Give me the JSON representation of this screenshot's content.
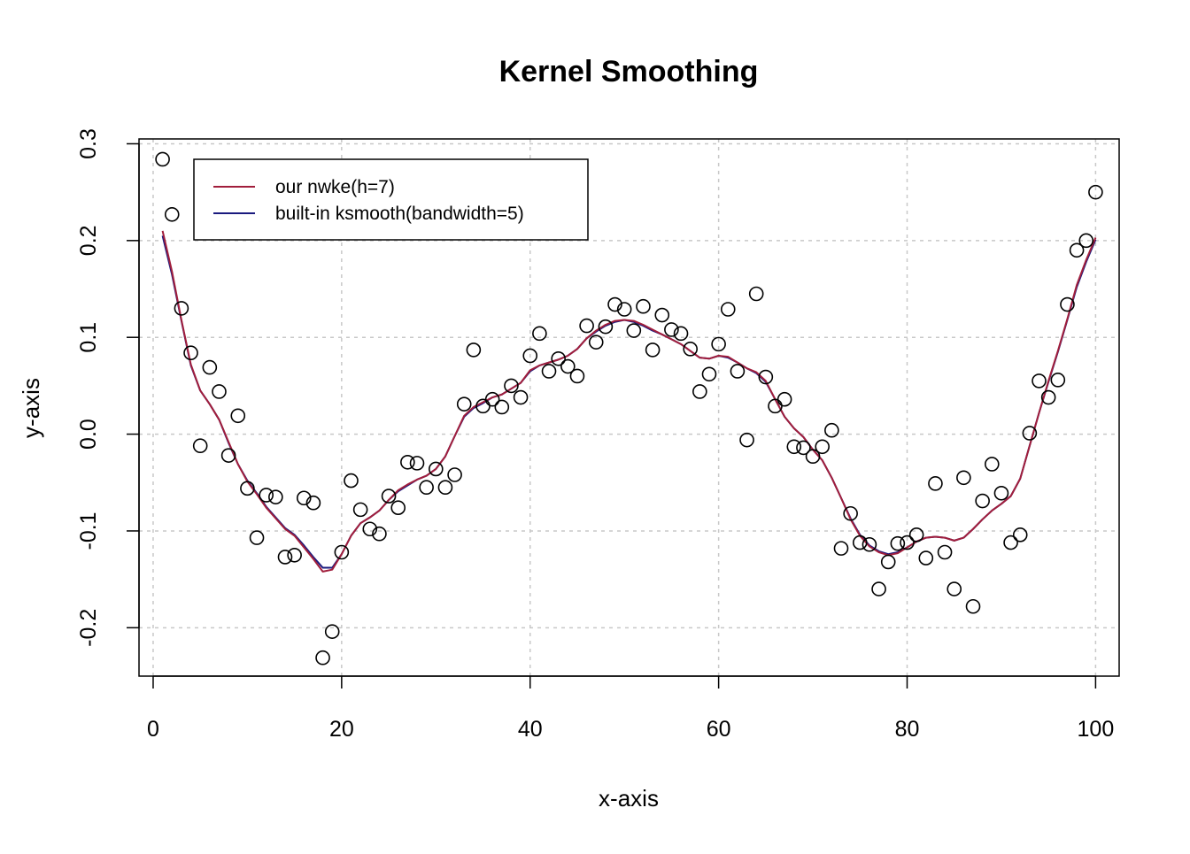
{
  "chart_data": {
    "type": "scatter",
    "title": "Kernel Smoothing",
    "xlabel": "x-axis",
    "ylabel": "y-axis",
    "xlim": [
      -1.5,
      102.5
    ],
    "ylim": [
      -0.25,
      0.305
    ],
    "x_ticks": [
      "0",
      "20",
      "40",
      "60",
      "80",
      "100"
    ],
    "x_tick_values": [
      0,
      20,
      40,
      60,
      80,
      100
    ],
    "y_ticks": [
      "-0.2",
      "-0.1",
      "0.0",
      "0.1",
      "0.2",
      "0.3"
    ],
    "y_tick_values": [
      -0.2,
      -0.1,
      0.0,
      0.1,
      0.2,
      0.3
    ],
    "grid": true,
    "legend_position": "top-left",
    "x": [
      1,
      2,
      3,
      4,
      5,
      6,
      7,
      8,
      9,
      10,
      11,
      12,
      13,
      14,
      15,
      16,
      17,
      18,
      19,
      20,
      21,
      22,
      23,
      24,
      25,
      26,
      27,
      28,
      29,
      30,
      31,
      32,
      33,
      34,
      35,
      36,
      37,
      38,
      39,
      40,
      41,
      42,
      43,
      44,
      45,
      46,
      47,
      48,
      49,
      50,
      51,
      52,
      53,
      54,
      55,
      56,
      57,
      58,
      59,
      60,
      61,
      62,
      63,
      64,
      65,
      66,
      67,
      68,
      69,
      70,
      71,
      72,
      73,
      74,
      75,
      76,
      77,
      78,
      79,
      80,
      81,
      82,
      83,
      84,
      85,
      86,
      87,
      88,
      89,
      90,
      91,
      92,
      93,
      94,
      95,
      96,
      97,
      98,
      99,
      100
    ],
    "points": [
      0.284,
      0.227,
      0.13,
      0.084,
      -0.012,
      0.069,
      0.044,
      -0.022,
      0.019,
      -0.056,
      -0.107,
      -0.063,
      -0.065,
      -0.127,
      -0.125,
      -0.066,
      -0.071,
      -0.231,
      -0.204,
      -0.122,
      -0.048,
      -0.078,
      -0.098,
      -0.103,
      -0.064,
      -0.076,
      -0.029,
      -0.03,
      -0.055,
      -0.036,
      -0.055,
      -0.042,
      0.031,
      0.087,
      0.029,
      0.036,
      0.028,
      0.05,
      0.038,
      0.081,
      0.104,
      0.065,
      0.078,
      0.07,
      0.06,
      0.112,
      0.095,
      0.111,
      0.134,
      0.129,
      0.107,
      0.132,
      0.087,
      0.123,
      0.108,
      0.104,
      0.088,
      0.044,
      0.062,
      0.093,
      0.129,
      0.065,
      -0.006,
      0.145,
      0.059,
      0.029,
      0.036,
      -0.013,
      -0.014,
      -0.023,
      -0.013,
      0.004,
      -0.118,
      -0.082,
      -0.112,
      -0.114,
      -0.16,
      -0.132,
      -0.113,
      -0.112,
      -0.104,
      -0.128,
      -0.051,
      -0.122,
      -0.16,
      -0.045,
      -0.178,
      -0.069,
      -0.031,
      -0.061,
      -0.112,
      -0.104,
      0.001,
      0.055,
      0.038,
      0.056,
      0.134,
      0.19,
      0.2,
      0.25
    ],
    "series": [
      {
        "name": "built-in ksmooth(bandwidth=5)",
        "color": "#1a1a7e",
        "values": [
          0.205,
          0.165,
          0.117,
          0.071,
          0.045,
          0.031,
          0.015,
          -0.009,
          -0.031,
          -0.048,
          -0.061,
          -0.075,
          -0.086,
          -0.097,
          -0.104,
          -0.115,
          -0.127,
          -0.138,
          -0.138,
          -0.124,
          -0.105,
          -0.092,
          -0.086,
          -0.079,
          -0.068,
          -0.059,
          -0.053,
          -0.047,
          -0.043,
          -0.036,
          -0.023,
          -0.002,
          0.018,
          0.027,
          0.032,
          0.038,
          0.041,
          0.047,
          0.053,
          0.065,
          0.071,
          0.074,
          0.077,
          0.081,
          0.088,
          0.099,
          0.106,
          0.112,
          0.116,
          0.118,
          0.116,
          0.112,
          0.107,
          0.103,
          0.098,
          0.093,
          0.086,
          0.079,
          0.078,
          0.081,
          0.079,
          0.074,
          0.068,
          0.063,
          0.054,
          0.036,
          0.018,
          0.006,
          -0.003,
          -0.016,
          -0.027,
          -0.045,
          -0.066,
          -0.087,
          -0.104,
          -0.115,
          -0.121,
          -0.124,
          -0.122,
          -0.117,
          -0.111,
          -0.107,
          -0.106,
          -0.107,
          -0.11,
          -0.107,
          -0.098,
          -0.088,
          -0.079,
          -0.072,
          -0.064,
          -0.046,
          -0.012,
          0.022,
          0.054,
          0.085,
          0.118,
          0.152,
          0.178,
          0.201
        ]
      },
      {
        "name": "our nwke(h=7)",
        "color": "#a11e3c",
        "values": [
          0.21,
          0.168,
          0.118,
          0.072,
          0.045,
          0.031,
          0.015,
          -0.008,
          -0.031,
          -0.049,
          -0.062,
          -0.076,
          -0.087,
          -0.098,
          -0.105,
          -0.117,
          -0.129,
          -0.142,
          -0.14,
          -0.124,
          -0.105,
          -0.092,
          -0.086,
          -0.079,
          -0.068,
          -0.058,
          -0.052,
          -0.047,
          -0.043,
          -0.036,
          -0.023,
          -0.002,
          0.019,
          0.028,
          0.033,
          0.038,
          0.041,
          0.047,
          0.053,
          0.066,
          0.071,
          0.074,
          0.077,
          0.081,
          0.088,
          0.099,
          0.107,
          0.113,
          0.117,
          0.118,
          0.117,
          0.113,
          0.108,
          0.103,
          0.098,
          0.093,
          0.086,
          0.079,
          0.078,
          0.081,
          0.08,
          0.074,
          0.068,
          0.064,
          0.055,
          0.036,
          0.018,
          0.006,
          -0.003,
          -0.016,
          -0.027,
          -0.045,
          -0.066,
          -0.088,
          -0.105,
          -0.116,
          -0.122,
          -0.125,
          -0.123,
          -0.117,
          -0.111,
          -0.107,
          -0.106,
          -0.107,
          -0.11,
          -0.107,
          -0.098,
          -0.088,
          -0.079,
          -0.072,
          -0.064,
          -0.046,
          -0.012,
          0.022,
          0.055,
          0.086,
          0.119,
          0.154,
          0.18,
          0.203
        ]
      }
    ],
    "legend": [
      {
        "label": "our nwke(h=7)",
        "color": "#a11e3c"
      },
      {
        "label": "built-in ksmooth(bandwidth=5)",
        "color": "#1a1a7e"
      }
    ]
  }
}
